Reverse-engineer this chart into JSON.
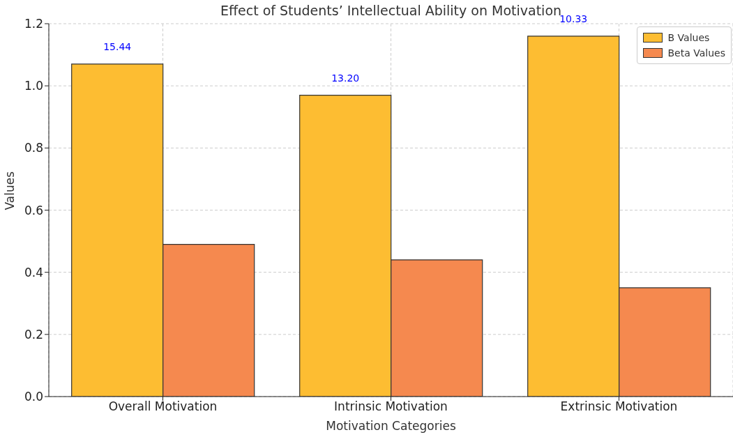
{
  "chart_data": {
    "type": "bar",
    "title": "Effect of Students’ Intellectual Ability on Motivation",
    "xlabel": "Motivation Categories",
    "ylabel": "Values",
    "categories": [
      "Overall Motivation",
      "Intrinsic Motivation",
      "Extrinsic Motivation"
    ],
    "series": [
      {
        "name": "B Values",
        "color": "#fdbd32",
        "values": [
          1.07,
          0.97,
          1.16
        ]
      },
      {
        "name": "Beta Values",
        "color": "#f5894f",
        "values": [
          0.49,
          0.44,
          0.35
        ]
      }
    ],
    "ylim": [
      0,
      1.2
    ],
    "yticks": [
      {
        "value": 0,
        "label": "0.0"
      },
      {
        "value": 0.2,
        "label": "0.2"
      },
      {
        "value": 0.4,
        "label": "0.4"
      },
      {
        "value": 0.6,
        "label": "0.6"
      },
      {
        "value": 0.8,
        "label": "0.8"
      },
      {
        "value": 1,
        "label": "1.0"
      },
      {
        "value": 1.2,
        "label": "1.2"
      }
    ],
    "annotations": [
      "15.44",
      "13.20",
      "10.33"
    ],
    "grid": true,
    "legend": "top right"
  }
}
